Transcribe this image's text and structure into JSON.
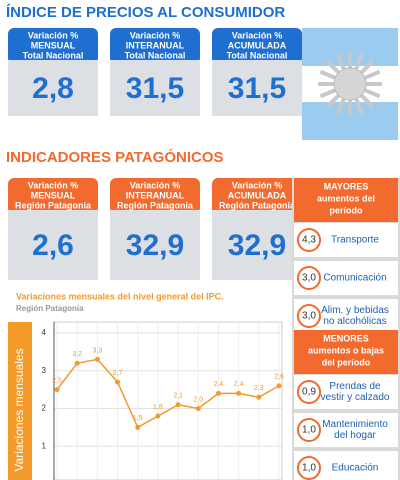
{
  "header": {
    "title": "ÍNDICE DE PRECIOS AL CONSUMIDOR"
  },
  "national": {
    "cards": [
      {
        "lines": [
          "Variación %",
          "MENSUAL",
          "Total Nacional"
        ],
        "value": "2,8"
      },
      {
        "lines": [
          "Variación %",
          "INTERANUAL",
          "Total Nacional"
        ],
        "value": "31,5"
      },
      {
        "lines": [
          "Variación %",
          "ACUMULADA",
          "Total Nacional"
        ],
        "value": "31,5"
      }
    ]
  },
  "patagonia": {
    "title": "INDICADORES PATAGÓNICOS",
    "cards": [
      {
        "lines": [
          "Variación %",
          "MENSUAL",
          "Región Patagonia"
        ],
        "value": "2,6"
      },
      {
        "lines": [
          "Variación %",
          "INTERANUAL",
          "Región Patagonia"
        ],
        "value": "32,9"
      },
      {
        "lines": [
          "Variación %",
          "ACUMULADA",
          "Región Patagonia"
        ],
        "value": "32,9"
      }
    ]
  },
  "ranking": {
    "top": {
      "lines": [
        "MAYORES",
        "aumentos del",
        "período"
      ],
      "items": [
        {
          "value": "4,3",
          "label": [
            "Transporte"
          ]
        },
        {
          "value": "3,0",
          "label": [
            "Comunicación"
          ]
        },
        {
          "value": "3,0",
          "label": [
            "Alim. y bebidas",
            "no alcohólicas"
          ]
        }
      ]
    },
    "bottom": {
      "lines": [
        "MENORES",
        "aumentos o bajas",
        "del período"
      ],
      "items": [
        {
          "value": "0,9",
          "label": [
            "Prendas de",
            "vestir y calzado"
          ]
        },
        {
          "value": "1,0",
          "label": [
            "Mantenimiento",
            "del hogar"
          ]
        },
        {
          "value": "1,0",
          "label": [
            "Educación"
          ]
        }
      ]
    }
  },
  "chart_data": {
    "type": "line",
    "title": "Variaciones mensuales del nivel general del IPC.",
    "subtitle": "Región Patagonia",
    "y_label": "Variaciones mensuales",
    "categories": [
      null,
      null,
      null,
      null,
      null,
      null,
      null,
      null,
      null,
      null,
      null,
      null
    ],
    "series": [
      {
        "name": null,
        "color": "#f39a2b",
        "values": [
          2.5,
          3.2,
          3.3,
          2.7,
          1.5,
          1.8,
          2.1,
          2.0,
          2.4,
          2.4,
          2.3,
          2.6
        ],
        "value_labels": [
          "2,5",
          "3,2",
          "3,3",
          "2,7",
          "1,5",
          "1,8",
          "2,1",
          "2,0",
          "2,4",
          "2,4",
          "2,3",
          "2,6"
        ]
      }
    ],
    "ylim": [
      0,
      4
    ],
    "yticks": [
      1,
      2,
      3,
      4
    ],
    "grid": true
  }
}
